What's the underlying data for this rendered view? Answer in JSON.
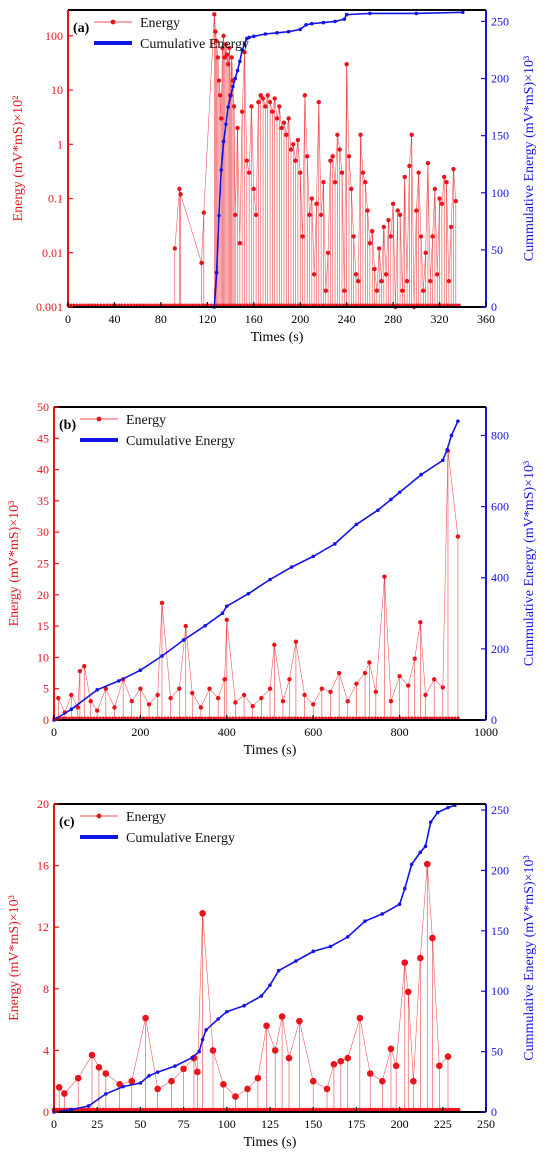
{
  "colors": {
    "energy": "#e8141c",
    "cumulative": "#1414e6",
    "axis": "#000000"
  },
  "chart_data": [
    {
      "panel_label": "(a)",
      "type": "scatter",
      "xlabel": "Times (s)",
      "ylabel": "Energy (mV*mS)×10²",
      "ylabel_right": "Cummulative Energy (mV*mS)×10³",
      "x_ticks": [
        "0",
        "40",
        "80",
        "120",
        "160",
        "200",
        "240",
        "280",
        "320",
        "360"
      ],
      "y_ticks": [
        "0.001",
        "0.01",
        "0.1",
        "1",
        "10",
        "100"
      ],
      "y_right_ticks": [
        "0",
        "50",
        "100",
        "150",
        "200",
        "250"
      ],
      "xlim": [
        0,
        360
      ],
      "ylim": [
        0.001,
        300
      ],
      "y_scale": "log",
      "y_right_lim": [
        0,
        260
      ],
      "legend": [
        "Energy",
        "Cumulative Energy"
      ],
      "series": [
        {
          "name": "Energy",
          "x": [
            92,
            96,
            97,
            115,
            117,
            126,
            127,
            128,
            129,
            130,
            131,
            132,
            133,
            134,
            135,
            136,
            137,
            138,
            139,
            140,
            141,
            142,
            143,
            144,
            146,
            148,
            150,
            152,
            154,
            156,
            158,
            160,
            162,
            164,
            166,
            168,
            170,
            172,
            174,
            176,
            178,
            180,
            182,
            184,
            186,
            188,
            190,
            192,
            194,
            196,
            198,
            200,
            202,
            204,
            206,
            208,
            210,
            212,
            214,
            216,
            218,
            220,
            222,
            224,
            226,
            228,
            230,
            232,
            234,
            236,
            238,
            240,
            242,
            244,
            246,
            248,
            250,
            252,
            254,
            256,
            258,
            260,
            262,
            264,
            266,
            268,
            270,
            272,
            274,
            276,
            278,
            280,
            282,
            284,
            286,
            288,
            290,
            292,
            294,
            296,
            298,
            300,
            302,
            304,
            306,
            308,
            310,
            312,
            314,
            316,
            318,
            320,
            322,
            324,
            326,
            328,
            330,
            332,
            334
          ],
          "values": [
            0.012,
            0.15,
            0.12,
            0.0065,
            0.055,
            250,
            120,
            80,
            40,
            15,
            8,
            3,
            60,
            100,
            40,
            70,
            45,
            30,
            60,
            8,
            40,
            15,
            5,
            0.05,
            2,
            0.015,
            4,
            50,
            0.5,
            0.3,
            5,
            0.15,
            0.05,
            6,
            8,
            7,
            5,
            8,
            6,
            4,
            7,
            3,
            5,
            2,
            2.5,
            1.5,
            3,
            0.8,
            1,
            0.5,
            1.2,
            0.3,
            0.02,
            8,
            0.6,
            0.05,
            0.1,
            0.004,
            0.08,
            6,
            0.05,
            0.2,
            0.002,
            0.01,
            0.5,
            0.6,
            0.2,
            1.5,
            0.8,
            0.3,
            0.002,
            30,
            0.6,
            0.15,
            0.02,
            0.004,
            0.003,
            1.5,
            0.3,
            0.2,
            0.06,
            0.015,
            0.025,
            0.005,
            0.002,
            0.012,
            0.003,
            0.03,
            0.004,
            0.04,
            0.02,
            0.08,
            0.001,
            0.06,
            0.05,
            0.002,
            0.25,
            0.003,
            0.4,
            1.5,
            0.001,
            0.06,
            0.3,
            0.02,
            0.002,
            0.01,
            0.45,
            0.003,
            0.02,
            0.15,
            0.004,
            0.1,
            0.08,
            0.25,
            0.2,
            0.003,
            0.03,
            0.35,
            0.09
          ]
        },
        {
          "name": "Cumulative Energy",
          "x": [
            126,
            128,
            130,
            132,
            134,
            136,
            138,
            140,
            142,
            144,
            146,
            148,
            150,
            152,
            154,
            156,
            160,
            170,
            180,
            190,
            200,
            205,
            210,
            220,
            230,
            238,
            240,
            260,
            300,
            340
          ],
          "values": [
            0,
            30,
            80,
            120,
            145,
            160,
            175,
            185,
            193,
            200,
            207,
            215,
            225,
            230,
            235,
            236,
            237,
            239,
            240,
            241,
            243,
            247,
            248,
            249,
            250,
            252,
            256,
            257,
            257,
            258
          ]
        }
      ]
    },
    {
      "panel_label": "(b)",
      "type": "scatter",
      "xlabel": "Times (s)",
      "ylabel": "Energy (mV*mS)×10³",
      "ylabel_right": "Cummulative Energy (mV*mS)×10³",
      "x_ticks": [
        "0",
        "200",
        "400",
        "600",
        "800",
        "1000"
      ],
      "y_ticks": [
        "0",
        "5",
        "10",
        "15",
        "20",
        "25",
        "30",
        "35",
        "40",
        "45",
        "50"
      ],
      "y_right_ticks": [
        "0",
        "200",
        "400",
        "600",
        "800"
      ],
      "xlim": [
        0,
        1000
      ],
      "ylim": [
        0,
        50
      ],
      "y_right_lim": [
        0,
        880
      ],
      "legend": [
        "Energy",
        "Cumulative Energy"
      ],
      "series": [
        {
          "name": "Energy",
          "x": [
            10,
            25,
            40,
            55,
            60,
            70,
            85,
            100,
            120,
            140,
            160,
            180,
            200,
            220,
            240,
            250,
            270,
            290,
            305,
            320,
            340,
            360,
            380,
            395,
            400,
            420,
            440,
            460,
            480,
            500,
            510,
            530,
            545,
            560,
            580,
            600,
            620,
            640,
            660,
            680,
            700,
            720,
            730,
            745,
            765,
            780,
            800,
            820,
            835,
            848,
            860,
            880,
            900,
            912,
            935
          ],
          "values": [
            3.5,
            1.2,
            4,
            2,
            7.8,
            8.6,
            3,
            1.5,
            5,
            2,
            6.5,
            3,
            5,
            2.5,
            4,
            18.7,
            3.5,
            5,
            15,
            4.3,
            2,
            5,
            3.5,
            6.5,
            16,
            2.8,
            4,
            2.2,
            3.5,
            5,
            12,
            3,
            6.5,
            12.5,
            4,
            2.5,
            5,
            4.5,
            7.5,
            3,
            5.8,
            7.5,
            9.2,
            4.5,
            22.9,
            3,
            7,
            5.5,
            9.8,
            15.6,
            4,
            6.5,
            5.2,
            43,
            29.3
          ]
        },
        {
          "name": "Cumulative Energy",
          "x": [
            0,
            40,
            100,
            150,
            200,
            250,
            300,
            350,
            390,
            400,
            450,
            500,
            550,
            600,
            650,
            700,
            750,
            780,
            800,
            850,
            900,
            910,
            920,
            935
          ],
          "values": [
            0,
            30,
            85,
            110,
            140,
            180,
            225,
            265,
            300,
            320,
            355,
            395,
            430,
            460,
            495,
            550,
            590,
            620,
            640,
            690,
            730,
            760,
            800,
            840
          ]
        }
      ]
    },
    {
      "panel_label": "(c)",
      "type": "scatter",
      "xlabel": "Times (s)",
      "ylabel": "Energy (mV*mS)×10³",
      "ylabel_right": "Cummulative Energy (mV*mS)×10³",
      "x_ticks": [
        "0",
        "25",
        "50",
        "75",
        "100",
        "125",
        "150",
        "175",
        "200",
        "225",
        "250"
      ],
      "y_ticks": [
        "0",
        "4",
        "8",
        "12",
        "16",
        "20"
      ],
      "y_right_ticks": [
        "0",
        "50",
        "100",
        "150",
        "200",
        "250"
      ],
      "xlim": [
        0,
        250
      ],
      "ylim": [
        0,
        20
      ],
      "y_right_lim": [
        0,
        255
      ],
      "legend": [
        "Energy",
        "Cumulative Energy"
      ],
      "series": [
        {
          "name": "Energy",
          "x": [
            3,
            6,
            14,
            22,
            26,
            30,
            38,
            45,
            53,
            60,
            68,
            75,
            81,
            83,
            86,
            92,
            98,
            105,
            112,
            118,
            123,
            128,
            132,
            136,
            142,
            150,
            158,
            162,
            166,
            170,
            177,
            183,
            190,
            195,
            198,
            203,
            205,
            208,
            212,
            216,
            219,
            223,
            228
          ],
          "values": [
            1.6,
            1.2,
            2.2,
            3.7,
            2.9,
            2.5,
            1.8,
            2,
            6.1,
            1.5,
            2,
            2.8,
            3.5,
            2.6,
            12.9,
            4,
            1.8,
            1,
            1.5,
            2.2,
            5.6,
            4,
            6.2,
            3.5,
            5.9,
            2,
            1.5,
            3.1,
            3.3,
            3.5,
            6.1,
            2.5,
            2,
            4.1,
            3,
            9.7,
            7.8,
            2,
            10,
            16.1,
            11.3,
            3,
            3.6
          ]
        },
        {
          "name": "Cumulative Energy",
          "x": [
            0,
            10,
            20,
            30,
            40,
            50,
            55,
            60,
            70,
            80,
            84,
            86,
            88,
            95,
            100,
            110,
            120,
            125,
            130,
            140,
            150,
            160,
            170,
            180,
            190,
            200,
            203,
            207,
            212,
            215,
            218,
            222,
            228,
            232
          ],
          "values": [
            0,
            2,
            5,
            15,
            21,
            24,
            30,
            33,
            38,
            45,
            50,
            60,
            68,
            77,
            83,
            88,
            96,
            105,
            117,
            125,
            133,
            137,
            145,
            158,
            164,
            172,
            185,
            205,
            215,
            220,
            240,
            248,
            252,
            254
          ]
        }
      ]
    }
  ]
}
